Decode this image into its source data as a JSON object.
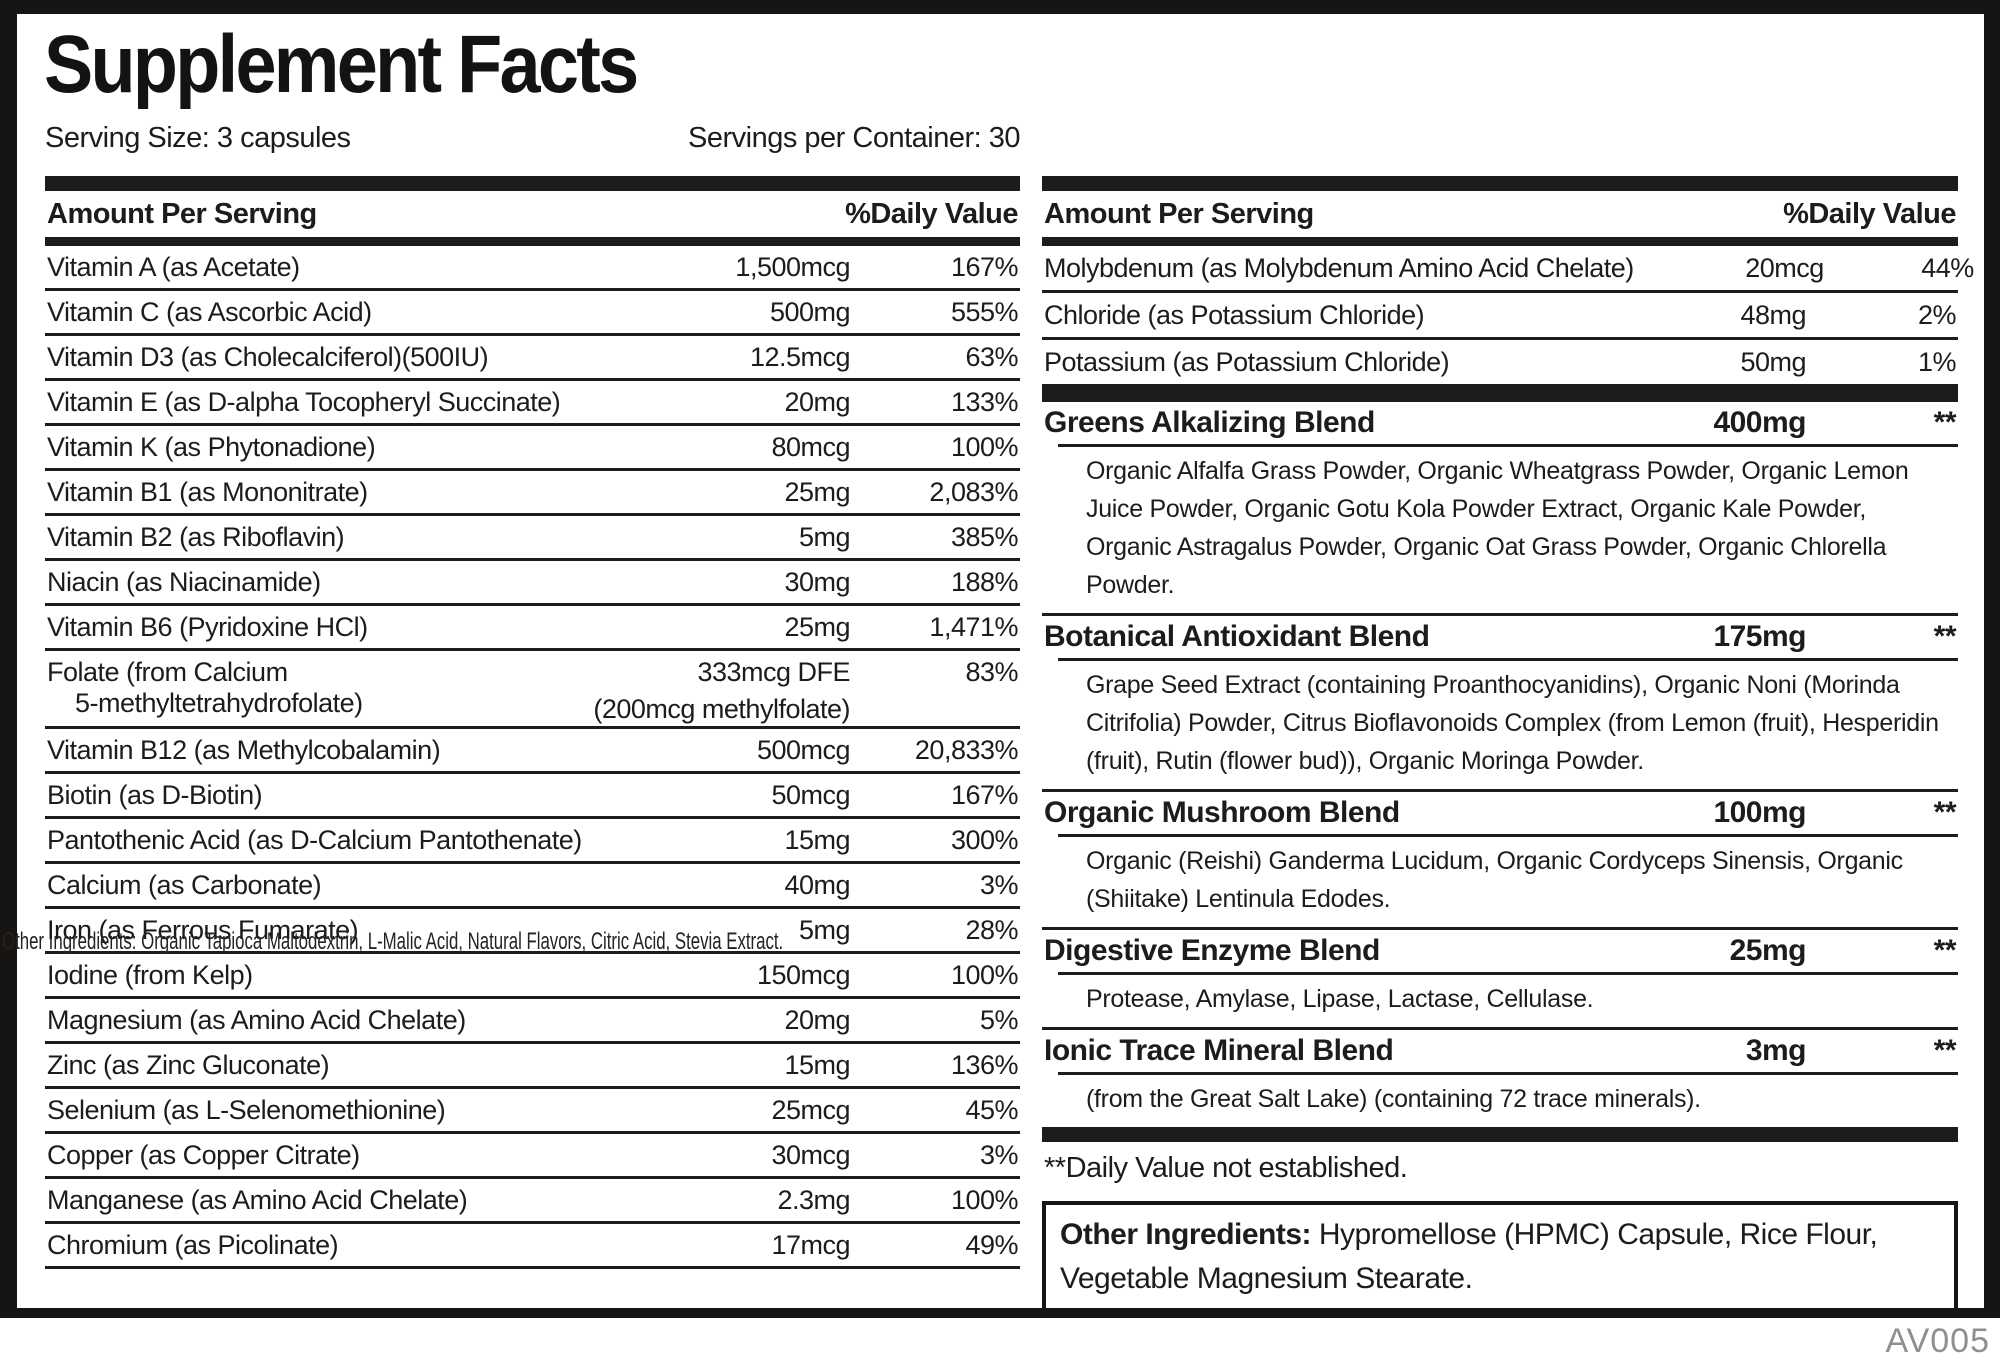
{
  "label": {
    "title": "Supplement Facts",
    "serving_size": "Serving Size: 3 capsules",
    "servings_per_container": "Servings per Container: 30",
    "amount_header": "Amount Per Serving",
    "dv_header": "%Daily Value",
    "footnote": "**Daily Value not established.",
    "other_ingredients_label": "Other Ingredients:",
    "other_ingredients_text": " Hypromellose (HPMC) Capsule, Rice Flour, Vegetable Magnesium Stearate.",
    "stray_text": "Other Ingredients: Organic Tapioca Maltodextrin, L-Malic Acid, Natural Flavors, Citric Acid, Stevia Extract.",
    "code": "AV005",
    "text_color": "#1e1c1a",
    "muted_color": "#8f8f8f"
  },
  "left_nutrients": [
    {
      "name": "Vitamin A (as Acetate)",
      "amount": "1,500mcg",
      "dv": "167%"
    },
    {
      "name": "Vitamin C (as Ascorbic Acid)",
      "amount": "500mg",
      "dv": "555%"
    },
    {
      "name": "Vitamin D3 (as Cholecalciferol)(500IU)",
      "amount": "12.5mcg",
      "dv": "63%"
    },
    {
      "name": "Vitamin E (as D-alpha Tocopheryl Succinate)",
      "amount": "20mg",
      "dv": "133%"
    },
    {
      "name": "Vitamin K (as Phytonadione)",
      "amount": "80mcg",
      "dv": "100%"
    },
    {
      "name": "Vitamin B1 (as Mononitrate)",
      "amount": "25mg",
      "dv": "2,083%"
    },
    {
      "name": "Vitamin B2 (as Riboflavin)",
      "amount": "5mg",
      "dv": "385%"
    },
    {
      "name": "Niacin (as Niacinamide)",
      "amount": "30mg",
      "dv": "188%"
    },
    {
      "name": "Vitamin B6 (Pyridoxine HCl)",
      "amount": "25mg",
      "dv": "1,471%"
    },
    {
      "name": "Folate (from Calcium",
      "name2": "5-methyltetrahydrofolate)",
      "amount": "333mcg DFE",
      "amount2": "(200mcg methylfolate)",
      "dv": "83%"
    },
    {
      "name": "Vitamin B12 (as Methylcobalamin)",
      "amount": "500mcg",
      "dv": "20,833%"
    },
    {
      "name": "Biotin (as D-Biotin)",
      "amount": "50mcg",
      "dv": "167%"
    },
    {
      "name": "Pantothenic Acid (as D-Calcium Pantothenate)",
      "amount": "15mg",
      "dv": "300%"
    },
    {
      "name": "Calcium (as Carbonate)",
      "amount": "40mg",
      "dv": "3%"
    },
    {
      "name": "Iron (as Ferrous Fumarate)",
      "amount": "5mg",
      "dv": "28%"
    },
    {
      "name": "Iodine (from Kelp)",
      "amount": "150mcg",
      "dv": "100%"
    },
    {
      "name": "Magnesium (as Amino Acid Chelate)",
      "amount": "20mg",
      "dv": "5%"
    },
    {
      "name": "Zinc (as Zinc Gluconate)",
      "amount": "15mg",
      "dv": "136%"
    },
    {
      "name": "Selenium (as L-Selenomethionine)",
      "amount": "25mcg",
      "dv": "45%"
    },
    {
      "name": "Copper (as Copper Citrate)",
      "amount": "30mcg",
      "dv": "3%"
    },
    {
      "name": "Manganese (as Amino Acid Chelate)",
      "amount": "2.3mg",
      "dv": "100%"
    },
    {
      "name": "Chromium (as Picolinate)",
      "amount": "17mcg",
      "dv": "49%"
    }
  ],
  "right_nutrients": [
    {
      "name": "Molybdenum (as Molybdenum Amino Acid Chelate)",
      "amount": "20mcg",
      "dv": "44%"
    },
    {
      "name": "Chloride (as Potassium Chloride)",
      "amount": "48mg",
      "dv": "2%"
    },
    {
      "name": "Potassium (as Potassium Chloride)",
      "amount": "50mg",
      "dv": "1%"
    }
  ],
  "blends": [
    {
      "name": "Greens Alkalizing Blend",
      "amount": "400mg",
      "dv": "**",
      "desc": "Organic Alfalfa Grass Powder, Organic Wheatgrass Powder, Organic Lemon Juice Powder, Organic Gotu Kola Powder Extract, Organic Kale Powder, Organic Astragalus Powder, Organic Oat Grass Powder, Organic Chlorella Powder."
    },
    {
      "name": "Botanical Antioxidant Blend",
      "amount": "175mg",
      "dv": "**",
      "desc": "Grape Seed Extract (containing Proanthocyanidins), Organic Noni (Morinda Citrifolia) Powder, Citrus Bioflavonoids Complex (from Lemon (fruit), Hesperidin (fruit), Rutin (flower bud)), Organic Moringa Powder."
    },
    {
      "name": "Organic Mushroom Blend",
      "amount": "100mg",
      "dv": "**",
      "desc": "Organic (Reishi) Ganderma Lucidum, Organic Cordyceps Sinensis, Organic (Shiitake) Lentinula Edodes."
    },
    {
      "name": "Digestive Enzyme Blend",
      "amount": "25mg",
      "dv": "**",
      "desc": "Protease, Amylase, Lipase, Lactase, Cellulase."
    },
    {
      "name": "Ionic Trace Mineral Blend",
      "amount": "3mg",
      "dv": "**",
      "desc": "(from the Great Salt Lake) (containing 72 trace minerals)."
    }
  ]
}
